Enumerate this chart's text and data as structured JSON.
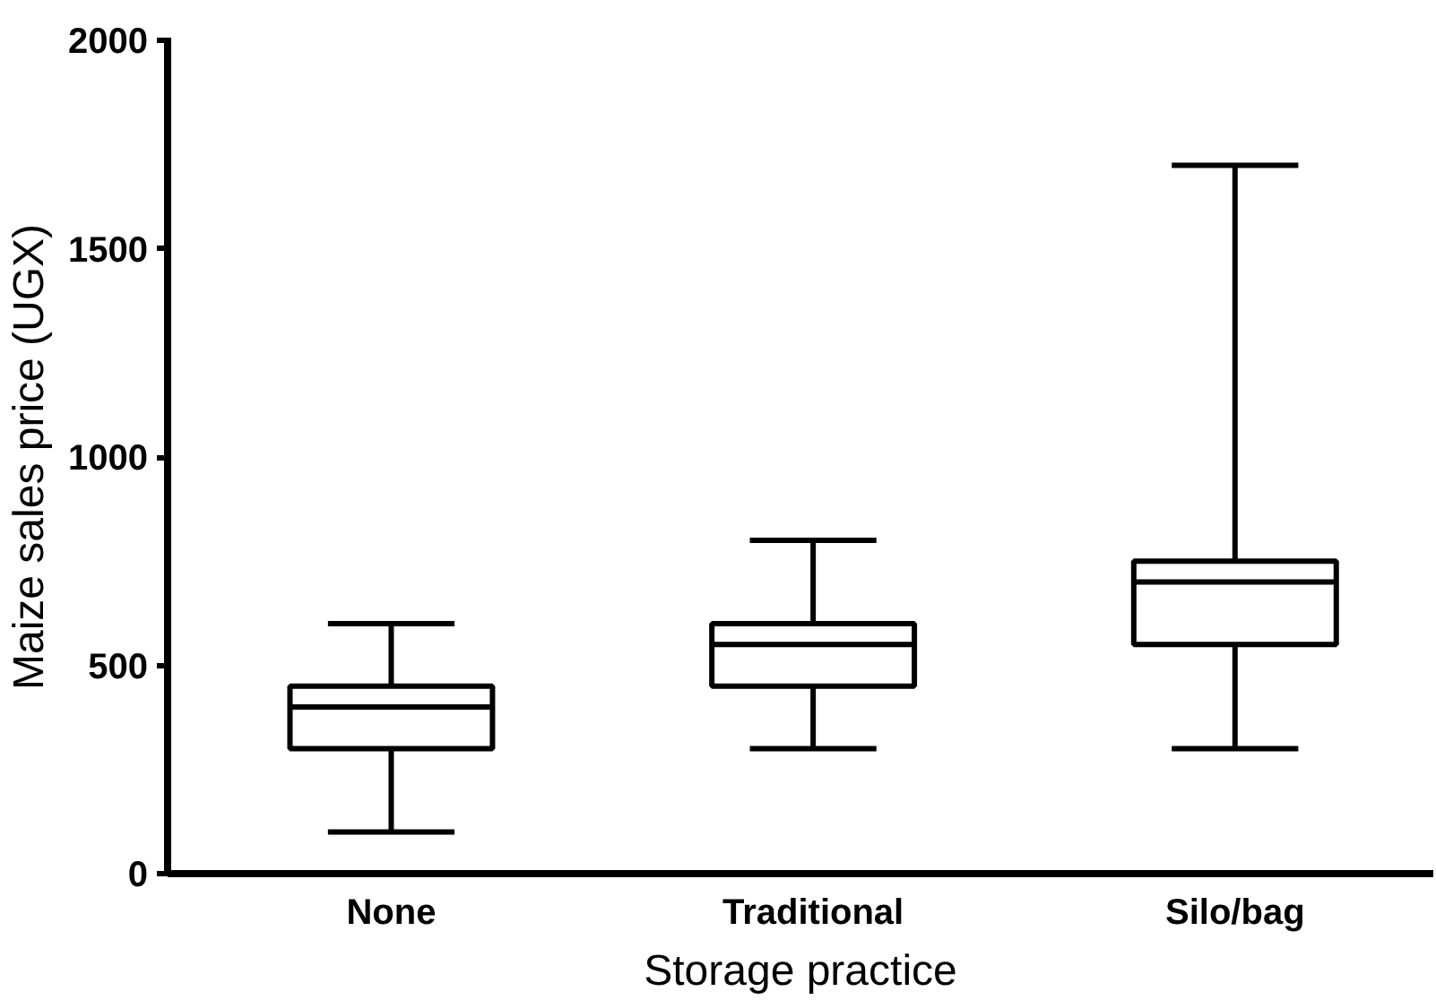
{
  "chart_data": {
    "type": "box",
    "xlabel": "Storage practice",
    "ylabel": "Maize sales price (UGX)",
    "categories": [
      "None",
      "Traditional",
      "Silo/bag"
    ],
    "boxes": [
      {
        "low": 100,
        "q1": 300,
        "median": 400,
        "q3": 450,
        "high": 600
      },
      {
        "low": 300,
        "q1": 450,
        "median": 550,
        "q3": 600,
        "high": 800
      },
      {
        "low": 300,
        "q1": 550,
        "median": 700,
        "q3": 750,
        "high": 1700
      }
    ],
    "color": "#000000",
    "ylim": [
      0,
      2000
    ],
    "yticks": [
      0,
      500,
      1000,
      1500,
      2000
    ],
    "grid": false
  }
}
